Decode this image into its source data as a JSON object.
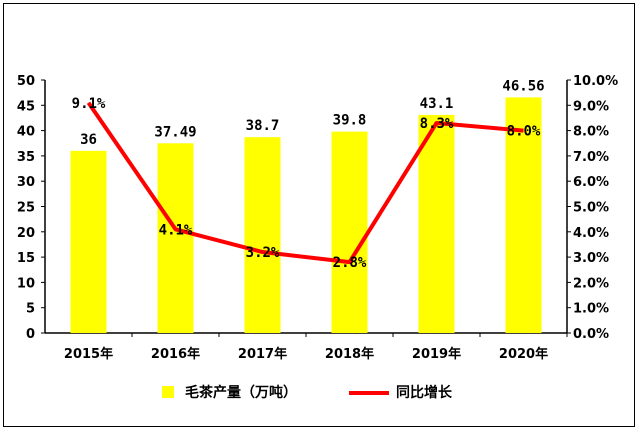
{
  "chart_data": {
    "type": "bar+line",
    "categories": [
      "2015年",
      "2016年",
      "2017年",
      "2018年",
      "2019年",
      "2020年"
    ],
    "series": [
      {
        "name": "毛茶产量（万吨）",
        "type": "bar",
        "axis": "left",
        "values": [
          36,
          37.49,
          38.7,
          39.8,
          43.1,
          46.56
        ],
        "labels": [
          "36",
          "37.49",
          "38.7",
          "39.8",
          "43.1",
          "46.56"
        ],
        "color": "#ffff00"
      },
      {
        "name": "同比增长",
        "type": "line",
        "axis": "right",
        "values": [
          9.1,
          4.1,
          3.2,
          2.8,
          8.3,
          8.0
        ],
        "labels": [
          "9.1%",
          "4.1%",
          "3.2%",
          "2.8%",
          "8.3%",
          "8.0%"
        ],
        "color": "#ff0000"
      }
    ],
    "y_left": {
      "min": 0,
      "max": 50,
      "ticks": [
        "0",
        "5",
        "10",
        "15",
        "20",
        "25",
        "30",
        "35",
        "40",
        "45",
        "50"
      ]
    },
    "y_right": {
      "min": 0,
      "max": 10,
      "ticks": [
        "0.0%",
        "1.0%",
        "2.0%",
        "3.0%",
        "4.0%",
        "5.0%",
        "6.0%",
        "7.0%",
        "8.0%",
        "9.0%",
        "10.0%"
      ]
    },
    "grid": false,
    "legend": "bottom"
  }
}
